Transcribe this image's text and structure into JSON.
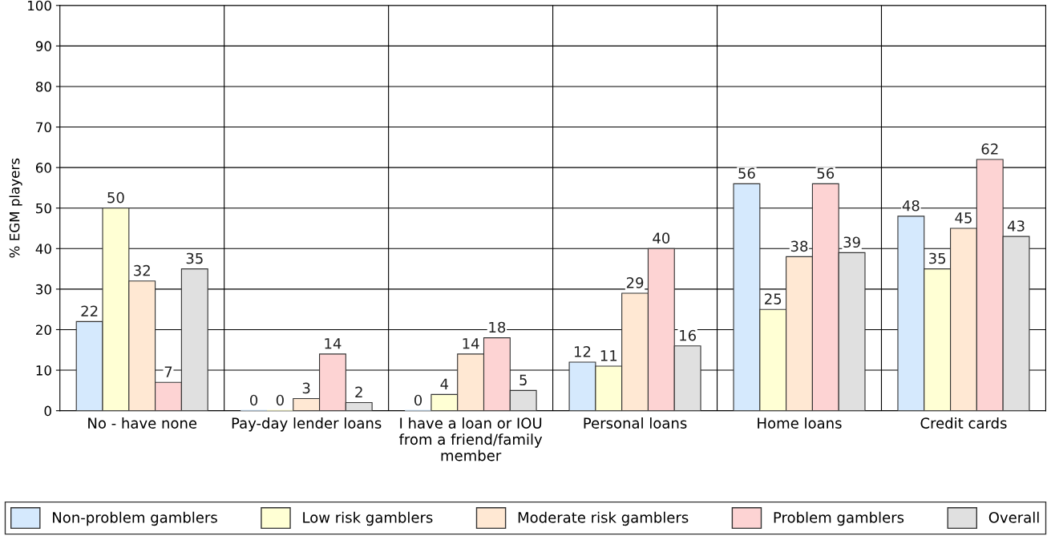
{
  "chart_data": {
    "type": "bar",
    "ylabel": "% EGM players",
    "categories": [
      "No - have none",
      "Pay-day lender loans",
      "I have a loan or IOU\nfrom a friend/family\nmember",
      "Personal loans",
      "Home loans",
      "Credit cards"
    ],
    "series": [
      {
        "name": "Non-problem gamblers",
        "color": "#d5e9fd",
        "values": [
          22,
          0,
          0,
          12,
          56,
          48
        ]
      },
      {
        "name": "Low risk gamblers",
        "color": "#ffffd4",
        "values": [
          50,
          0,
          4,
          11,
          25,
          35
        ]
      },
      {
        "name": "Moderate risk gamblers",
        "color": "#ffe8d3",
        "values": [
          32,
          3,
          14,
          29,
          38,
          45
        ]
      },
      {
        "name": "Problem gamblers",
        "color": "#fdd3d3",
        "values": [
          7,
          14,
          18,
          40,
          56,
          62
        ]
      },
      {
        "name": "Overall",
        "color": "#e0e0e0",
        "values": [
          35,
          2,
          5,
          16,
          39,
          43
        ]
      }
    ],
    "ylim": [
      0,
      100
    ],
    "yticks": [
      0,
      10,
      20,
      30,
      40,
      50,
      60,
      70,
      80,
      90,
      100
    ],
    "grid": true,
    "legend": "bottom",
    "data_labels": true
  }
}
